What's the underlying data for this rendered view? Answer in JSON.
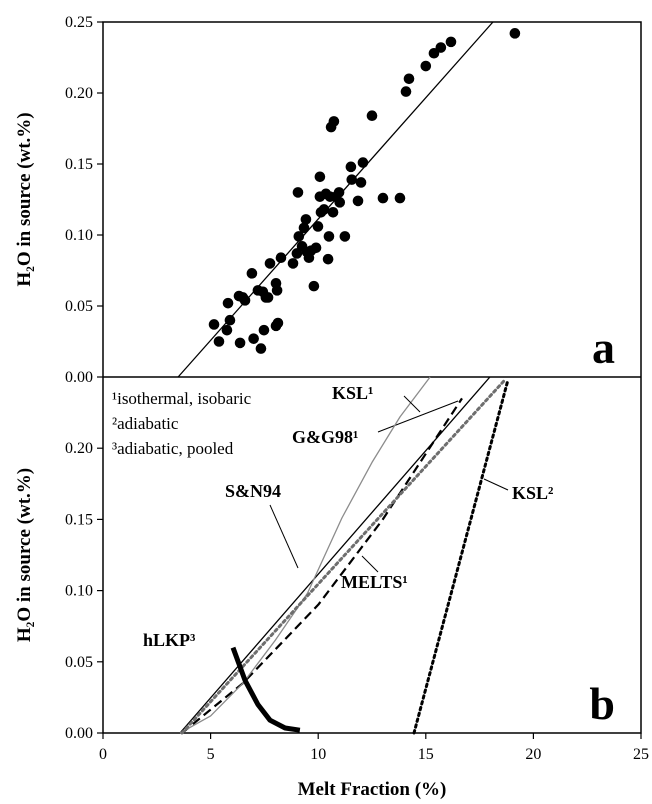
{
  "chart_data": [
    {
      "type": "scatter",
      "ylabel": "H₂O in source (wt.%)",
      "panel_label": "a",
      "color": "#000000",
      "xlim": [
        0,
        25
      ],
      "ylim": [
        0,
        0.25
      ],
      "yticks": [
        {
          "value": 0,
          "label": "0.00"
        },
        {
          "value": 0.05,
          "label": "0.05"
        },
        {
          "value": 0.1,
          "label": "0.10"
        },
        {
          "value": 0.15,
          "label": "0.15"
        },
        {
          "value": 0.2,
          "label": "0.20"
        },
        {
          "value": 0.25,
          "label": "0.25"
        }
      ],
      "x": [
        5.16,
        5.39,
        5.81,
        5.76,
        5.9,
        6.32,
        6.37,
        6.5,
        6.6,
        6.92,
        7.0,
        7.2,
        7.34,
        7.43,
        7.48,
        7.57,
        7.67,
        7.76,
        8.09,
        8.04,
        8.13,
        8.04,
        8.27,
        8.83,
        9.01,
        9.06,
        9.1,
        9.25,
        9.34,
        9.43,
        9.48,
        9.57,
        9.67,
        9.8,
        9.9,
        9.99,
        10.08,
        10.08,
        10.13,
        10.27,
        10.36,
        10.46,
        10.5,
        10.55,
        10.6,
        10.73,
        10.69,
        10.83,
        10.97,
        11.0,
        11.24,
        11.52,
        11.56,
        11.85,
        12.08,
        11.99,
        12.5,
        13.01,
        13.8,
        14.08,
        14.22,
        15.0,
        15.38,
        15.7,
        16.17,
        19.14
      ],
      "y": [
        0.037,
        0.025,
        0.052,
        0.033,
        0.04,
        0.057,
        0.024,
        0.056,
        0.054,
        0.073,
        0.027,
        0.061,
        0.02,
        0.06,
        0.033,
        0.056,
        0.056,
        0.08,
        0.061,
        0.066,
        0.038,
        0.036,
        0.084,
        0.08,
        0.087,
        0.13,
        0.099,
        0.092,
        0.105,
        0.111,
        0.088,
        0.084,
        0.089,
        0.064,
        0.091,
        0.106,
        0.141,
        0.127,
        0.116,
        0.118,
        0.129,
        0.083,
        0.099,
        0.127,
        0.176,
        0.18,
        0.116,
        0.127,
        0.13,
        0.123,
        0.099,
        0.148,
        0.139,
        0.124,
        0.151,
        0.137,
        0.184,
        0.126,
        0.126,
        0.201,
        0.21,
        0.219,
        0.228,
        0.232,
        0.236,
        0.242
      ],
      "fit": {
        "x": [
          3.49,
          18.12
        ],
        "values": [
          0,
          0.25
        ]
      }
    },
    {
      "type": "line",
      "ylabel": "H₂O in source (wt.%)",
      "xlabel": "Melt Fraction (%)",
      "panel_label": "b",
      "xlim": [
        0,
        25
      ],
      "xticks": [
        0,
        5,
        10,
        15,
        20,
        25
      ],
      "ylim": [
        0,
        0.25
      ],
      "yticks": [
        {
          "value": 0,
          "label": "0.00"
        },
        {
          "value": 0.05,
          "label": "0.05"
        },
        {
          "value": 0.1,
          "label": "0.10"
        },
        {
          "value": 0.15,
          "label": "0.15"
        },
        {
          "value": 0.2,
          "label": "0.20"
        }
      ],
      "notes": [
        "¹isothermal, isobaric",
        "²adiabatic",
        "³adiabatic, pooled"
      ],
      "series": [
        {
          "name": "S&N94",
          "color": "#000000",
          "style": "solid",
          "x": [
            3.58,
            17.98
          ],
          "values": [
            0,
            0.25
          ]
        },
        {
          "name": "G&G98¹",
          "color": "#000000",
          "style": "dashed",
          "x": [
            3.67,
            6.5,
            10.0,
            13.0,
            16.68
          ],
          "values": [
            0,
            0.035,
            0.09,
            0.15,
            0.235
          ]
        },
        {
          "name": "KSL¹",
          "color": "#8c8c8c",
          "style": "solid",
          "x": [
            3.58,
            5.0,
            6.5,
            8.0,
            9.5,
            11.1,
            12.5,
            13.8,
            15.2
          ],
          "values": [
            0,
            0.012,
            0.035,
            0.065,
            0.098,
            0.151,
            0.19,
            0.222,
            0.25
          ]
        },
        {
          "name": "MELTS¹",
          "color": "#6e6e6e",
          "style": "dotted",
          "x": [
            3.67,
            18.68
          ],
          "values": [
            0,
            0.248
          ]
        },
        {
          "name": "KSL²",
          "color": "#000000",
          "style": "dotted",
          "x": [
            14.45,
            18.82
          ],
          "values": [
            0,
            0.248
          ]
        },
        {
          "name": "hLKP³",
          "color": "#000000",
          "style": "thick",
          "x": [
            6.04,
            6.6,
            7.2,
            7.76,
            8.46,
            9.15
          ],
          "values": [
            0.06,
            0.037,
            0.02,
            0.009,
            0.0035,
            0.002
          ]
        }
      ]
    }
  ]
}
